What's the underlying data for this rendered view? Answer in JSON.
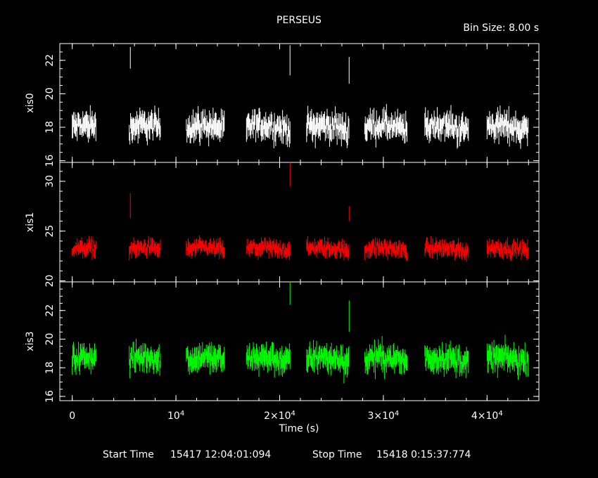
{
  "chart_data": {
    "type": "scatter",
    "title": "PERSEUS",
    "bin_size": "Bin Size: 8.00 s",
    "xlabel": "Time (s)",
    "xlim": [
      -1200,
      45000
    ],
    "x_ticks": [
      {
        "value": 0,
        "base": "0",
        "sup": ""
      },
      {
        "value": 10000,
        "base": "10",
        "sup": "4"
      },
      {
        "value": 20000,
        "base": "2×10",
        "sup": "4"
      },
      {
        "value": 30000,
        "base": "3×10",
        "sup": "4"
      },
      {
        "value": 40000,
        "base": "4×10",
        "sup": "4"
      }
    ],
    "footer": {
      "start_label": "Start Time",
      "start_value": "15417 12:04:01:094",
      "stop_label": "Stop Time",
      "stop_value": "15418  0:15:37:774"
    },
    "segments": [
      [
        0,
        2300
      ],
      [
        5500,
        8500
      ],
      [
        11000,
        14700
      ],
      [
        16800,
        21000
      ],
      [
        22600,
        26700
      ],
      [
        28200,
        32300
      ],
      [
        34000,
        38200
      ],
      [
        40000,
        44000
      ]
    ],
    "series": [
      {
        "name": "xis0",
        "ylabel": "xis0",
        "ylim": [
          15.9,
          23.0
        ],
        "yticks": [
          16,
          18,
          20,
          22
        ],
        "level": 18.0,
        "spread": 0.9,
        "color": "#ffffff",
        "spikes": [
          [
            5600,
            21.5,
            22.8
          ],
          [
            21000,
            21.1,
            22.9
          ],
          [
            26700,
            20.6,
            22.2
          ]
        ]
      },
      {
        "name": "xis1",
        "ylabel": "xis1",
        "ylim": [
          19.9,
          31.9
        ],
        "yticks": [
          20,
          25,
          30
        ],
        "level": 23.2,
        "spread": 0.9,
        "color": "#ff0000",
        "spikes": [
          [
            5600,
            26.3,
            28.8
          ],
          [
            21000,
            29.5,
            31.9
          ],
          [
            26700,
            26.0,
            27.5
          ]
        ]
      },
      {
        "name": "xis3",
        "ylabel": "xis3",
        "ylim": [
          15.7,
          24.0
        ],
        "yticks": [
          16,
          18,
          20,
          22
        ],
        "level": 18.6,
        "spread": 1.0,
        "color": "#00ff00",
        "spikes": [
          [
            21000,
            22.4,
            24.0
          ],
          [
            26700,
            20.5,
            22.7
          ]
        ]
      }
    ]
  }
}
